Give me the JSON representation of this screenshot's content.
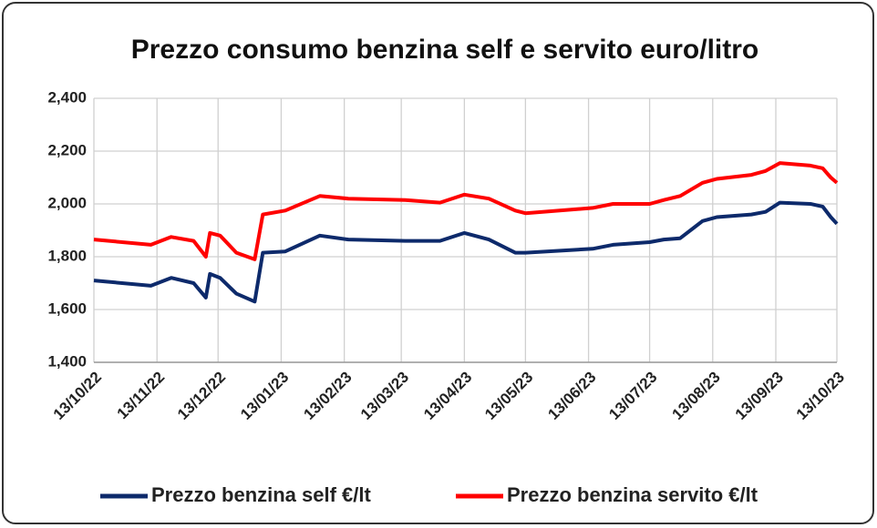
{
  "chart_data": {
    "type": "line",
    "title": "Prezzo consumo benzina self e servito euro/litro",
    "x": [
      "13/10/22",
      "10/11/22",
      "20/11/22",
      "01/12/22",
      "07/12/22",
      "09/12/22",
      "14/12/22",
      "22/12/22",
      "31/12/22",
      "04/01/23",
      "15/01/23",
      "01/02/23",
      "15/02/23",
      "15/03/23",
      "01/04/23",
      "13/04/23",
      "25/04/23",
      "08/05/23",
      "13/05/23",
      "15/06/23",
      "25/06/23",
      "13/07/23",
      "20/07/23",
      "28/07/23",
      "08/08/23",
      "15/08/23",
      "01/09/23",
      "08/09/23",
      "15/09/23",
      "30/09/23",
      "06/10/23",
      "10/10/23",
      "13/10/23"
    ],
    "series": [
      {
        "name": "Prezzo benzina self €/lt",
        "color": "#0d2a6b",
        "values": [
          1710,
          1690,
          1720,
          1700,
          1645,
          1735,
          1720,
          1660,
          1630,
          1815,
          1820,
          1880,
          1865,
          1860,
          1860,
          1890,
          1865,
          1815,
          1815,
          1830,
          1845,
          1855,
          1865,
          1870,
          1935,
          1950,
          1960,
          1970,
          2005,
          2000,
          1990,
          1950,
          1925
        ]
      },
      {
        "name": "Prezzo benzina servito €/lt",
        "color": "#ff0000",
        "values": [
          1865,
          1845,
          1875,
          1860,
          1800,
          1890,
          1880,
          1815,
          1790,
          1960,
          1975,
          2030,
          2020,
          2015,
          2005,
          2035,
          2020,
          1975,
          1965,
          1985,
          2000,
          2000,
          2015,
          2030,
          2080,
          2095,
          2110,
          2125,
          2155,
          2145,
          2135,
          2100,
          2080
        ]
      }
    ],
    "xlim": [
      "13/10/22",
      "13/10/23"
    ],
    "xticks": [
      "13/10/22",
      "13/11/22",
      "13/12/22",
      "13/01/23",
      "13/02/23",
      "13/03/23",
      "13/04/23",
      "13/05/23",
      "13/06/23",
      "13/07/23",
      "13/08/23",
      "13/09/23",
      "13/10/23"
    ],
    "ylim": [
      1400,
      2400
    ],
    "yticks": [
      {
        "value": 1400,
        "label": "1,400"
      },
      {
        "value": 1600,
        "label": "1,600"
      },
      {
        "value": 1800,
        "label": "1,800"
      },
      {
        "value": 2000,
        "label": "2,000"
      },
      {
        "value": 2200,
        "label": "2,200"
      },
      {
        "value": 2400,
        "label": "2,400"
      }
    ],
    "grid": true,
    "legend": "bottom"
  }
}
